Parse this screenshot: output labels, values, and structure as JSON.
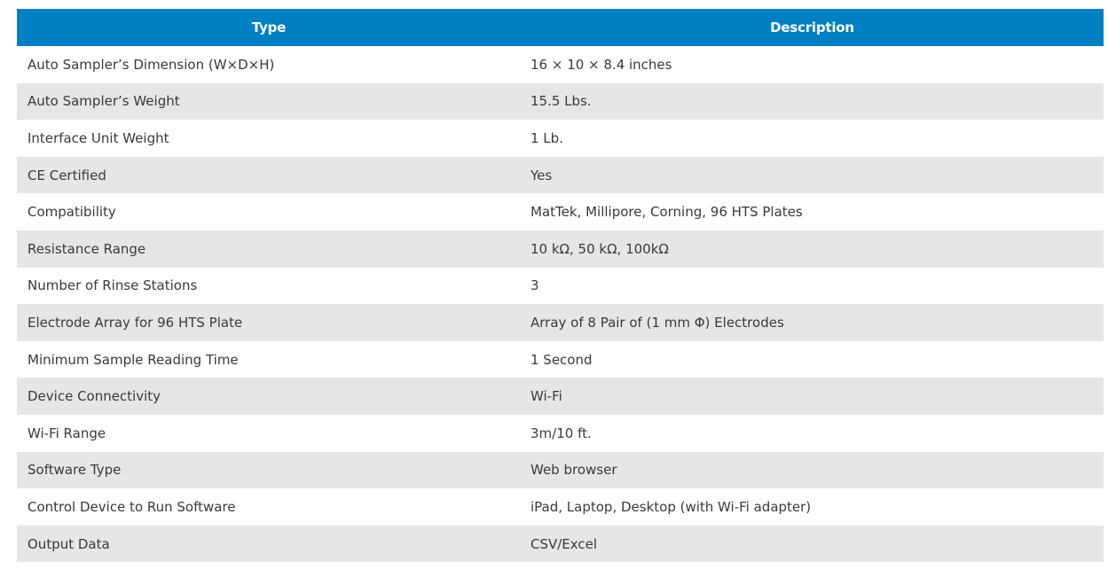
{
  "table": {
    "headers": {
      "type": "Type",
      "description": "Description"
    },
    "rows": [
      {
        "type": "Auto Sampler’s Dimension (W×D×H)",
        "description": "16 × 10 × 8.4 inches"
      },
      {
        "type": "Auto Sampler’s Weight",
        "description": "15.5 Lbs."
      },
      {
        "type": "Interface Unit Weight",
        "description": "1 Lb."
      },
      {
        "type": "CE Certified",
        "description": "Yes"
      },
      {
        "type": "Compatibility",
        "description": "MatTek, Millipore, Corning, 96 HTS Plates"
      },
      {
        "type": "Resistance Range",
        "description": "10 kΩ, 50 kΩ, 100kΩ"
      },
      {
        "type": "Number of Rinse Stations",
        "description": "3"
      },
      {
        "type": "Electrode Array for 96 HTS Plate",
        "description": "Array of 8 Pair of (1 mm Φ) Electrodes"
      },
      {
        "type": "Minimum Sample Reading Time",
        "description": "1 Second"
      },
      {
        "type": "Device Connectivity",
        "description": "Wi-Fi"
      },
      {
        "type": "Wi-Fi Range",
        "description": "3m/10 ft."
      },
      {
        "type": "Software Type",
        "description": "Web browser"
      },
      {
        "type": "Control Device to Run Software",
        "description": "iPad, Laptop, Desktop (with Wi-Fi adapter)"
      },
      {
        "type": "Output Data",
        "description": "CSV/Excel"
      }
    ]
  },
  "colors": {
    "header_bg": "#0080c3",
    "header_text": "#ffffff",
    "row_stripe": "#e6e6e6",
    "row_plain": "#ffffff",
    "cell_text": "#3a3a3a"
  }
}
